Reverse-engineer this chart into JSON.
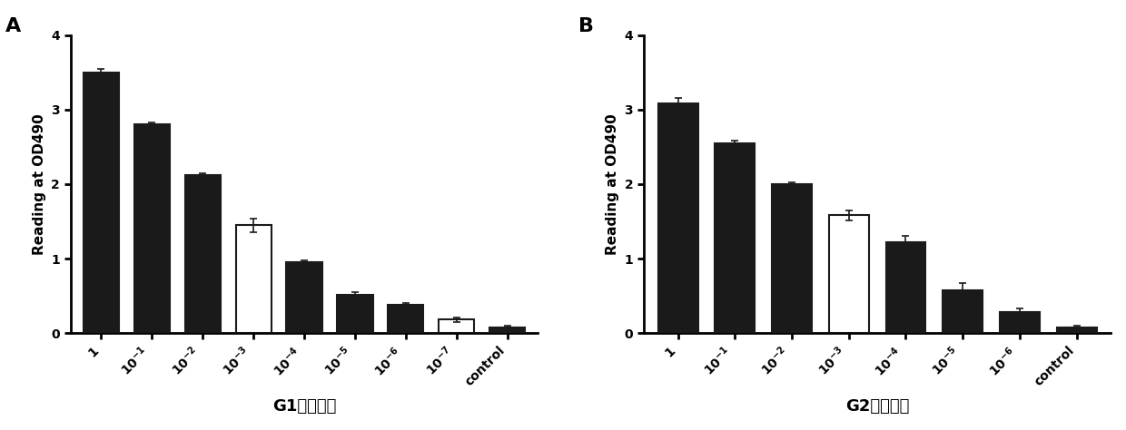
{
  "panel_A": {
    "title": "A",
    "xlabel": "G1腹水效价",
    "ylabel": "Reading at OD490",
    "values": [
      3.5,
      2.8,
      2.12,
      1.45,
      0.95,
      0.52,
      0.38,
      0.18,
      0.08
    ],
    "errors": [
      0.05,
      0.03,
      0.03,
      0.09,
      0.03,
      0.03,
      0.03,
      0.03,
      0.02
    ],
    "colors": [
      "#1a1a1a",
      "#1a1a1a",
      "#1a1a1a",
      "#ffffff",
      "#1a1a1a",
      "#1a1a1a",
      "#1a1a1a",
      "#ffffff",
      "#1a1a1a"
    ],
    "edgecolors": [
      "#1a1a1a",
      "#1a1a1a",
      "#1a1a1a",
      "#1a1a1a",
      "#1a1a1a",
      "#1a1a1a",
      "#1a1a1a",
      "#1a1a1a",
      "#1a1a1a"
    ],
    "labels": [
      "1",
      "10$^{-1}$",
      "10$^{-2}$",
      "10$^{-3}$",
      "10$^{-4}$",
      "10$^{-5}$",
      "10$^{-6}$",
      "10$^{-7}$",
      "control"
    ],
    "ylim": [
      0,
      4
    ],
    "yticks": [
      0,
      1,
      2,
      3,
      4
    ]
  },
  "panel_B": {
    "title": "B",
    "xlabel": "G2腹水效价",
    "ylabel": "Reading at OD490",
    "values": [
      3.08,
      2.55,
      2.0,
      1.58,
      1.22,
      0.58,
      0.28,
      0.08
    ],
    "errors": [
      0.07,
      0.03,
      0.02,
      0.07,
      0.08,
      0.09,
      0.05,
      0.02
    ],
    "colors": [
      "#1a1a1a",
      "#1a1a1a",
      "#1a1a1a",
      "#ffffff",
      "#1a1a1a",
      "#1a1a1a",
      "#1a1a1a",
      "#1a1a1a"
    ],
    "edgecolors": [
      "#1a1a1a",
      "#1a1a1a",
      "#1a1a1a",
      "#1a1a1a",
      "#1a1a1a",
      "#1a1a1a",
      "#1a1a1a",
      "#1a1a1a"
    ],
    "labels": [
      "1",
      "10$^{-1}$",
      "10$^{-2}$",
      "10$^{-3}$",
      "10$^{-4}$",
      "10$^{-5}$",
      "10$^{-6}$",
      "control"
    ],
    "ylim": [
      0,
      4
    ],
    "yticks": [
      0,
      1,
      2,
      3,
      4
    ]
  },
  "bar_width": 0.7,
  "background_color": "#ffffff",
  "error_capsize": 3,
  "error_color": "#1a1a1a",
  "error_linewidth": 1.2,
  "xlabel_fontsize": 13,
  "ylabel_fontsize": 11,
  "panel_label_fontsize": 16,
  "tick_fontsize": 10
}
